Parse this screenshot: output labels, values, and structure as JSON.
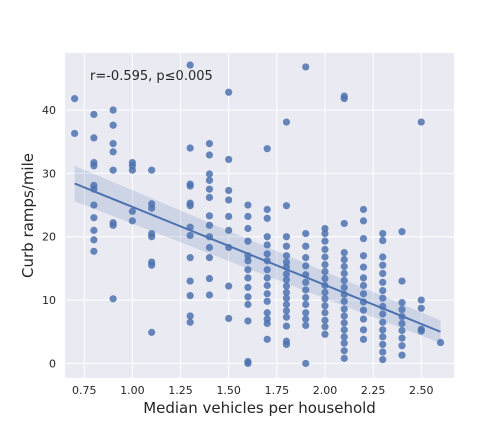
{
  "chart_data": {
    "type": "scatter",
    "title": "",
    "xlabel": "Median vehicles per household",
    "ylabel": "Curb ramps/mile",
    "annotation": "r=-0.595, p≤0.005",
    "xlim": [
      0.65,
      2.67
    ],
    "ylim": [
      -2.3,
      49
    ],
    "x_ticks": [
      0.75,
      1.0,
      1.25,
      1.5,
      1.75,
      2.0,
      2.25,
      2.5
    ],
    "x_tick_labels": [
      "0.75",
      "1.00",
      "1.25",
      "1.50",
      "1.75",
      "2.00",
      "2.25",
      "2.50"
    ],
    "y_ticks": [
      0,
      10,
      20,
      30,
      40
    ],
    "y_tick_labels": [
      "0",
      "10",
      "20",
      "30",
      "40"
    ],
    "grid": true,
    "colors": {
      "point": "#4c72b0",
      "line": "#4c72b0",
      "band": "#4c72b0",
      "background": "#eaeaf2",
      "grid": "#ffffff"
    },
    "regression": {
      "x": [
        0.7,
        2.6
      ],
      "y": [
        28.4,
        5.0
      ],
      "ci_lower": [
        25.6,
        3.2
      ],
      "ci_upper": [
        31.2,
        6.8
      ]
    },
    "points": [
      {
        "x": 0.7,
        "y": 41.8
      },
      {
        "x": 0.7,
        "y": 36.3
      },
      {
        "x": 0.8,
        "y": 39.3
      },
      {
        "x": 0.8,
        "y": 35.6
      },
      {
        "x": 0.8,
        "y": 31.7
      },
      {
        "x": 0.8,
        "y": 31.2
      },
      {
        "x": 0.8,
        "y": 28.1
      },
      {
        "x": 0.8,
        "y": 27.5
      },
      {
        "x": 0.8,
        "y": 25.0
      },
      {
        "x": 0.8,
        "y": 23.0
      },
      {
        "x": 0.8,
        "y": 21.0
      },
      {
        "x": 0.8,
        "y": 19.5
      },
      {
        "x": 0.8,
        "y": 17.7
      },
      {
        "x": 0.9,
        "y": 40.0
      },
      {
        "x": 0.9,
        "y": 37.6
      },
      {
        "x": 0.9,
        "y": 34.7
      },
      {
        "x": 0.9,
        "y": 33.4
      },
      {
        "x": 0.9,
        "y": 30.5
      },
      {
        "x": 0.9,
        "y": 22.2
      },
      {
        "x": 0.9,
        "y": 21.8
      },
      {
        "x": 0.9,
        "y": 10.2
      },
      {
        "x": 1.0,
        "y": 31.7
      },
      {
        "x": 1.0,
        "y": 31.2
      },
      {
        "x": 1.0,
        "y": 30.5
      },
      {
        "x": 1.0,
        "y": 24.0
      },
      {
        "x": 1.0,
        "y": 22.5
      },
      {
        "x": 1.1,
        "y": 30.5
      },
      {
        "x": 1.1,
        "y": 25.2
      },
      {
        "x": 1.1,
        "y": 24.5
      },
      {
        "x": 1.1,
        "y": 20.5
      },
      {
        "x": 1.1,
        "y": 20.0
      },
      {
        "x": 1.1,
        "y": 16.0
      },
      {
        "x": 1.1,
        "y": 15.5
      },
      {
        "x": 1.1,
        "y": 4.9
      },
      {
        "x": 1.3,
        "y": 47.1
      },
      {
        "x": 1.3,
        "y": 34.0
      },
      {
        "x": 1.3,
        "y": 28.3
      },
      {
        "x": 1.3,
        "y": 28.0
      },
      {
        "x": 1.3,
        "y": 25.3
      },
      {
        "x": 1.3,
        "y": 24.9
      },
      {
        "x": 1.3,
        "y": 21.5
      },
      {
        "x": 1.3,
        "y": 20.2
      },
      {
        "x": 1.3,
        "y": 16.7
      },
      {
        "x": 1.3,
        "y": 13.0
      },
      {
        "x": 1.3,
        "y": 10.7
      },
      {
        "x": 1.3,
        "y": 7.5
      },
      {
        "x": 1.3,
        "y": 6.5
      },
      {
        "x": 1.4,
        "y": 34.7
      },
      {
        "x": 1.4,
        "y": 32.9
      },
      {
        "x": 1.4,
        "y": 29.9
      },
      {
        "x": 1.4,
        "y": 28.9
      },
      {
        "x": 1.4,
        "y": 27.5
      },
      {
        "x": 1.4,
        "y": 26.2
      },
      {
        "x": 1.4,
        "y": 23.3
      },
      {
        "x": 1.4,
        "y": 21.8
      },
      {
        "x": 1.4,
        "y": 20.0
      },
      {
        "x": 1.4,
        "y": 18.3
      },
      {
        "x": 1.4,
        "y": 16.7
      },
      {
        "x": 1.4,
        "y": 13.4
      },
      {
        "x": 1.4,
        "y": 10.8
      },
      {
        "x": 1.5,
        "y": 42.8
      },
      {
        "x": 1.5,
        "y": 32.2
      },
      {
        "x": 1.5,
        "y": 27.3
      },
      {
        "x": 1.5,
        "y": 25.8
      },
      {
        "x": 1.5,
        "y": 23.2
      },
      {
        "x": 1.5,
        "y": 21.0
      },
      {
        "x": 1.5,
        "y": 18.3
      },
      {
        "x": 1.5,
        "y": 12.2
      },
      {
        "x": 1.5,
        "y": 7.1
      },
      {
        "x": 1.6,
        "y": 25.0
      },
      {
        "x": 1.6,
        "y": 23.2
      },
      {
        "x": 1.6,
        "y": 21.3
      },
      {
        "x": 1.6,
        "y": 19.3
      },
      {
        "x": 1.6,
        "y": 17.0
      },
      {
        "x": 1.6,
        "y": 16.2
      },
      {
        "x": 1.6,
        "y": 14.8
      },
      {
        "x": 1.6,
        "y": 13.5
      },
      {
        "x": 1.6,
        "y": 12.0
      },
      {
        "x": 1.6,
        "y": 10.5
      },
      {
        "x": 1.6,
        "y": 9.3
      },
      {
        "x": 1.6,
        "y": 6.7
      },
      {
        "x": 1.6,
        "y": 0.3
      },
      {
        "x": 1.6,
        "y": 0.0
      },
      {
        "x": 1.7,
        "y": 33.9
      },
      {
        "x": 1.7,
        "y": 24.3
      },
      {
        "x": 1.7,
        "y": 22.9
      },
      {
        "x": 1.7,
        "y": 20.0
      },
      {
        "x": 1.7,
        "y": 18.7
      },
      {
        "x": 1.7,
        "y": 17.3
      },
      {
        "x": 1.7,
        "y": 16.2
      },
      {
        "x": 1.7,
        "y": 14.8
      },
      {
        "x": 1.7,
        "y": 13.5
      },
      {
        "x": 1.7,
        "y": 12.3
      },
      {
        "x": 1.7,
        "y": 11.0
      },
      {
        "x": 1.7,
        "y": 9.8
      },
      {
        "x": 1.7,
        "y": 8.0
      },
      {
        "x": 1.7,
        "y": 7.0
      },
      {
        "x": 1.7,
        "y": 6.3
      },
      {
        "x": 1.7,
        "y": 3.8
      },
      {
        "x": 1.8,
        "y": 38.1
      },
      {
        "x": 1.8,
        "y": 24.9
      },
      {
        "x": 1.8,
        "y": 20.0
      },
      {
        "x": 1.8,
        "y": 18.5
      },
      {
        "x": 1.8,
        "y": 17.0
      },
      {
        "x": 1.8,
        "y": 16.0
      },
      {
        "x": 1.8,
        "y": 15.2
      },
      {
        "x": 1.8,
        "y": 14.1
      },
      {
        "x": 1.8,
        "y": 13.2
      },
      {
        "x": 1.8,
        "y": 12.2
      },
      {
        "x": 1.8,
        "y": 11.2
      },
      {
        "x": 1.8,
        "y": 10.3
      },
      {
        "x": 1.8,
        "y": 9.3
      },
      {
        "x": 1.8,
        "y": 8.3
      },
      {
        "x": 1.8,
        "y": 7.3
      },
      {
        "x": 1.8,
        "y": 5.9
      },
      {
        "x": 1.8,
        "y": 3.5
      },
      {
        "x": 1.8,
        "y": 3.0
      },
      {
        "x": 1.9,
        "y": 46.8
      },
      {
        "x": 1.9,
        "y": 20.5
      },
      {
        "x": 1.9,
        "y": 18.5
      },
      {
        "x": 1.9,
        "y": 16.7
      },
      {
        "x": 1.9,
        "y": 15.4
      },
      {
        "x": 1.9,
        "y": 14.0
      },
      {
        "x": 1.9,
        "y": 12.8
      },
      {
        "x": 1.9,
        "y": 11.6
      },
      {
        "x": 1.9,
        "y": 10.4
      },
      {
        "x": 1.9,
        "y": 9.3
      },
      {
        "x": 1.9,
        "y": 8.0
      },
      {
        "x": 1.9,
        "y": 7.0
      },
      {
        "x": 1.9,
        "y": 6.0
      },
      {
        "x": 1.9,
        "y": 0.0
      },
      {
        "x": 2.0,
        "y": 21.3
      },
      {
        "x": 2.0,
        "y": 20.5
      },
      {
        "x": 2.0,
        "y": 19.3
      },
      {
        "x": 2.0,
        "y": 18.0
      },
      {
        "x": 2.0,
        "y": 16.8
      },
      {
        "x": 2.0,
        "y": 15.6
      },
      {
        "x": 2.0,
        "y": 14.5
      },
      {
        "x": 2.0,
        "y": 13.4
      },
      {
        "x": 2.0,
        "y": 12.3
      },
      {
        "x": 2.0,
        "y": 11.2
      },
      {
        "x": 2.0,
        "y": 10.2
      },
      {
        "x": 2.0,
        "y": 9.1
      },
      {
        "x": 2.0,
        "y": 8.0
      },
      {
        "x": 2.0,
        "y": 6.8
      },
      {
        "x": 2.0,
        "y": 5.8
      },
      {
        "x": 2.0,
        "y": 4.6
      },
      {
        "x": 2.1,
        "y": 42.2
      },
      {
        "x": 2.1,
        "y": 41.8
      },
      {
        "x": 2.1,
        "y": 22.1
      },
      {
        "x": 2.1,
        "y": 17.5
      },
      {
        "x": 2.1,
        "y": 16.4
      },
      {
        "x": 2.1,
        "y": 15.3
      },
      {
        "x": 2.1,
        "y": 14.2
      },
      {
        "x": 2.1,
        "y": 13.1
      },
      {
        "x": 2.1,
        "y": 12.0
      },
      {
        "x": 2.1,
        "y": 10.9
      },
      {
        "x": 2.1,
        "y": 9.8
      },
      {
        "x": 2.1,
        "y": 8.6
      },
      {
        "x": 2.1,
        "y": 7.5
      },
      {
        "x": 2.1,
        "y": 6.4
      },
      {
        "x": 2.1,
        "y": 5.3
      },
      {
        "x": 2.1,
        "y": 4.2
      },
      {
        "x": 2.1,
        "y": 3.2
      },
      {
        "x": 2.1,
        "y": 2.0
      },
      {
        "x": 2.1,
        "y": 0.8
      },
      {
        "x": 2.2,
        "y": 24.3
      },
      {
        "x": 2.2,
        "y": 22.5
      },
      {
        "x": 2.2,
        "y": 19.7
      },
      {
        "x": 2.2,
        "y": 17.0
      },
      {
        "x": 2.2,
        "y": 15.2
      },
      {
        "x": 2.2,
        "y": 13.5
      },
      {
        "x": 2.2,
        "y": 12.3
      },
      {
        "x": 2.2,
        "y": 11.0
      },
      {
        "x": 2.2,
        "y": 9.7
      },
      {
        "x": 2.2,
        "y": 8.4
      },
      {
        "x": 2.2,
        "y": 7.0
      },
      {
        "x": 2.2,
        "y": 5.3
      },
      {
        "x": 2.2,
        "y": 3.8
      },
      {
        "x": 2.3,
        "y": 20.5
      },
      {
        "x": 2.3,
        "y": 19.4
      },
      {
        "x": 2.3,
        "y": 16.8
      },
      {
        "x": 2.3,
        "y": 15.5
      },
      {
        "x": 2.3,
        "y": 14.2
      },
      {
        "x": 2.3,
        "y": 12.8
      },
      {
        "x": 2.3,
        "y": 11.5
      },
      {
        "x": 2.3,
        "y": 10.3
      },
      {
        "x": 2.3,
        "y": 9.0
      },
      {
        "x": 2.3,
        "y": 7.8
      },
      {
        "x": 2.3,
        "y": 6.5
      },
      {
        "x": 2.3,
        "y": 5.3
      },
      {
        "x": 2.3,
        "y": 4.2
      },
      {
        "x": 2.3,
        "y": 3.0
      },
      {
        "x": 2.3,
        "y": 1.8
      },
      {
        "x": 2.3,
        "y": 0.6
      },
      {
        "x": 2.4,
        "y": 20.8
      },
      {
        "x": 2.4,
        "y": 13.0
      },
      {
        "x": 2.4,
        "y": 9.6
      },
      {
        "x": 2.4,
        "y": 8.5
      },
      {
        "x": 2.4,
        "y": 7.4
      },
      {
        "x": 2.4,
        "y": 6.3
      },
      {
        "x": 2.4,
        "y": 5.2
      },
      {
        "x": 2.4,
        "y": 4.0
      },
      {
        "x": 2.4,
        "y": 2.8
      },
      {
        "x": 2.4,
        "y": 1.3
      },
      {
        "x": 2.5,
        "y": 38.1
      },
      {
        "x": 2.5,
        "y": 10.0
      },
      {
        "x": 2.5,
        "y": 8.7
      },
      {
        "x": 2.5,
        "y": 5.4
      },
      {
        "x": 2.5,
        "y": 5.1
      },
      {
        "x": 2.6,
        "y": 3.3
      }
    ]
  }
}
